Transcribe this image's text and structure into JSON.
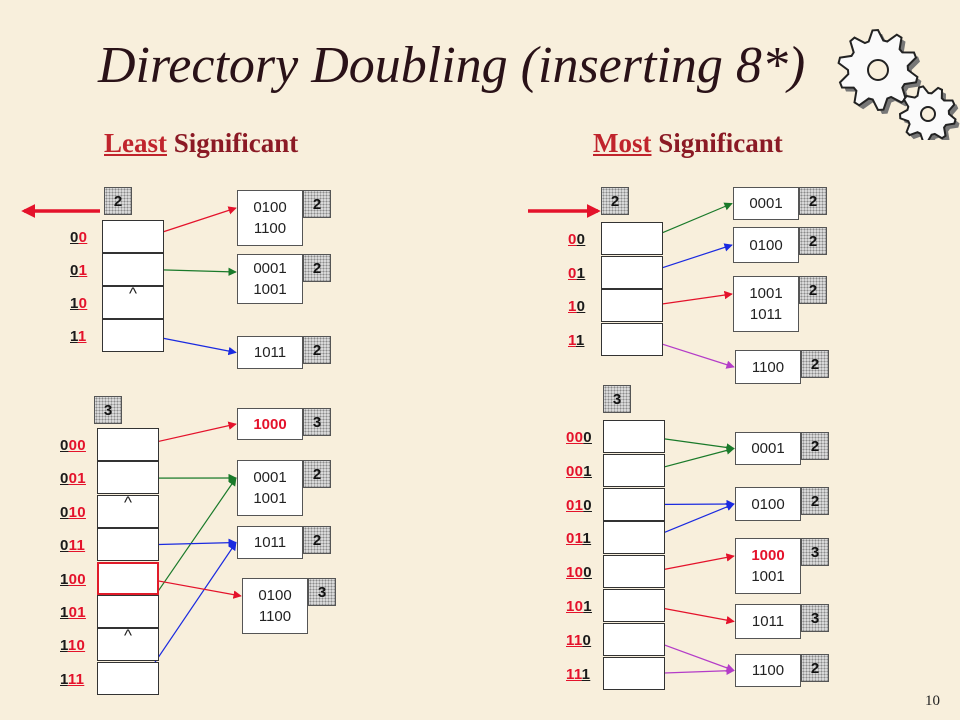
{
  "title_parts": [
    "Directory Doubling (",
    "inserting 8*",
    ")"
  ],
  "sections": {
    "left": {
      "highlight": "Least",
      "rest": " Significant"
    },
    "right": {
      "highlight": "Most",
      "rest": " Significant"
    }
  },
  "caret": "^",
  "page_number": "10",
  "colors": {
    "red": "#e4122b",
    "green": "#1a7a2a",
    "blue": "#1a2ae0",
    "violet": "#b43cc8"
  },
  "icons": [
    "left-arrow-icon",
    "right-arrow-icon",
    "gears-icon"
  ],
  "panels": {
    "lsb_before": {
      "global_depth": "2",
      "labels": [
        [
          "0",
          "0"
        ],
        [
          "0",
          "1"
        ],
        [
          "1",
          "0"
        ],
        [
          "1",
          "1"
        ]
      ],
      "buckets": [
        {
          "lines": [
            "0100",
            "1100"
          ],
          "depth": "2"
        },
        {
          "lines": [
            "0001",
            "1001"
          ],
          "depth": "2"
        },
        {
          "lines": [
            "1011"
          ],
          "depth": "2"
        }
      ]
    },
    "lsb_after": {
      "global_depth": "3",
      "labels": [
        [
          "0",
          "00"
        ],
        [
          "0",
          "01"
        ],
        [
          "0",
          "10"
        ],
        [
          "0",
          "11"
        ],
        [
          "1",
          "00"
        ],
        [
          "1",
          "01"
        ],
        [
          "1",
          "10"
        ],
        [
          "1",
          "11"
        ]
      ],
      "buckets": [
        {
          "lines": [
            "1000"
          ],
          "depth": "3"
        },
        {
          "lines": [
            "0001",
            "1001"
          ],
          "depth": "2"
        },
        {
          "lines": [
            "1011"
          ],
          "depth": "2"
        },
        {
          "lines": [
            "0100",
            "1100"
          ],
          "depth": "3"
        }
      ]
    },
    "msb_before": {
      "global_depth": "2",
      "labels": [
        [
          "0",
          "0"
        ],
        [
          "0",
          "1"
        ],
        [
          "1",
          "0"
        ],
        [
          "1",
          "1"
        ]
      ],
      "buckets": [
        {
          "lines": [
            "0001"
          ],
          "depth": "2"
        },
        {
          "lines": [
            "0100"
          ],
          "depth": "2"
        },
        {
          "lines": [
            "1001",
            "1011"
          ],
          "depth": "2"
        },
        {
          "lines": [
            "1100"
          ],
          "depth": "2"
        }
      ]
    },
    "msb_after": {
      "global_depth": "3",
      "labels": [
        [
          "00",
          "0"
        ],
        [
          "00",
          "1"
        ],
        [
          "01",
          "0"
        ],
        [
          "01",
          "1"
        ],
        [
          "10",
          "0"
        ],
        [
          "10",
          "1"
        ],
        [
          "11",
          "0"
        ],
        [
          "11",
          "1"
        ]
      ],
      "buckets": [
        {
          "lines": [
            "0001"
          ],
          "depth": "2"
        },
        {
          "lines": [
            "0100"
          ],
          "depth": "2"
        },
        {
          "lines": [
            "1000",
            "1001"
          ],
          "depth": "3"
        },
        {
          "lines": [
            "1011"
          ],
          "depth": "3"
        },
        {
          "lines": [
            "1100"
          ],
          "depth": "2"
        }
      ]
    }
  }
}
